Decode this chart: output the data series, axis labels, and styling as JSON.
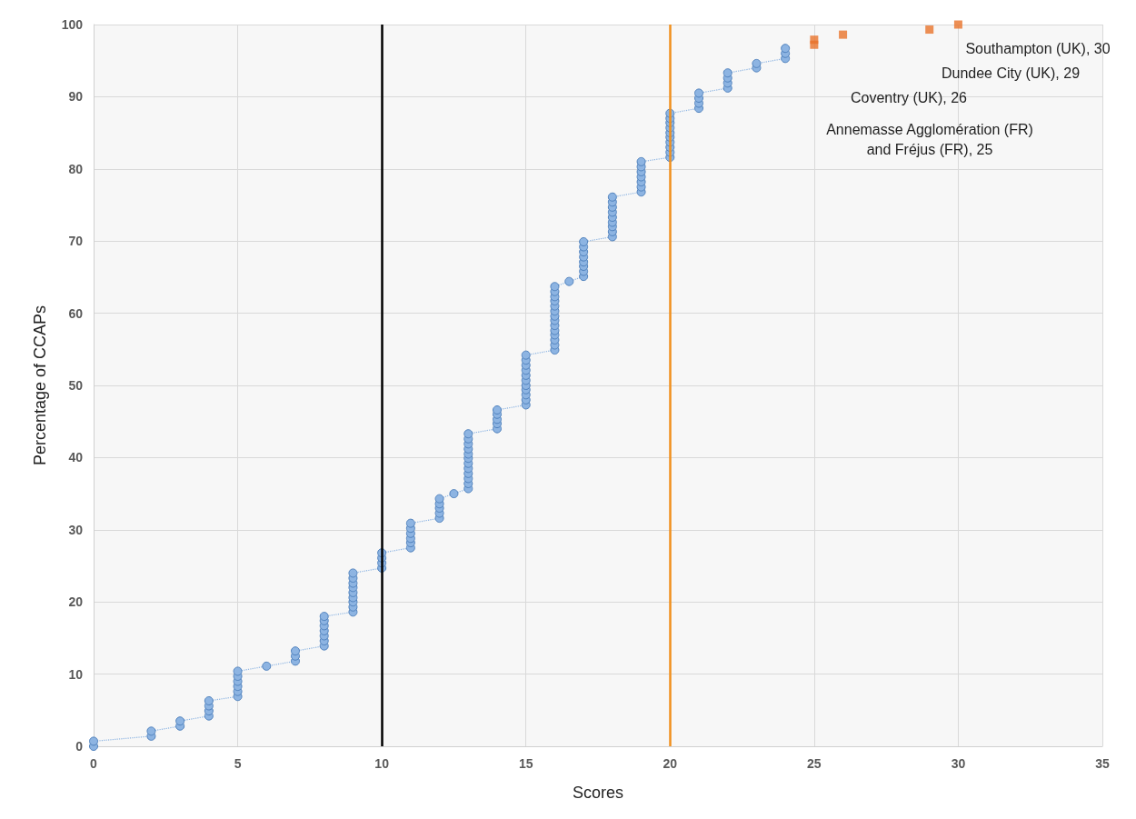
{
  "chart_data": {
    "type": "scatter",
    "xlabel": "Scores",
    "ylabel": "Percentage of CCAPs",
    "xlim": [
      0,
      35
    ],
    "xticks": [
      0,
      5,
      10,
      15,
      20,
      25,
      30,
      35
    ],
    "ylim": [
      0,
      100
    ],
    "yticks": [
      0,
      10,
      20,
      30,
      40,
      50,
      60,
      70,
      80,
      90,
      100
    ],
    "grid": true,
    "series": [
      {
        "type": "line",
        "color": "#8db4e2",
        "marker": "circle",
        "line_style": "dotted",
        "x": [
          0,
          0,
          2,
          2,
          3,
          3,
          4,
          4,
          4,
          4,
          5,
          5,
          5,
          5,
          5,
          5,
          6,
          7,
          7,
          7,
          8,
          8,
          8,
          8,
          8,
          8,
          8,
          9,
          9,
          9,
          9,
          9,
          9,
          9,
          9,
          9,
          10,
          10,
          10,
          10,
          11,
          11,
          11,
          11,
          11,
          11,
          12,
          12,
          12,
          12,
          12,
          12.5,
          13,
          13,
          13,
          13,
          13,
          13,
          13,
          13,
          13,
          13,
          13,
          13,
          14,
          14,
          14,
          14,
          14,
          15,
          15,
          15,
          15,
          15,
          15,
          15,
          15,
          15,
          15,
          15,
          16,
          16,
          16,
          16,
          16,
          16,
          16,
          16,
          16,
          16,
          16,
          16,
          16,
          16,
          16.5,
          17,
          17,
          17,
          17,
          17,
          17,
          17,
          17,
          18,
          18,
          18,
          18,
          18,
          18,
          18,
          18,
          18,
          19,
          19,
          19,
          19,
          19,
          19,
          19,
          20,
          20,
          20,
          20,
          20,
          20,
          20,
          20,
          20,
          20,
          21,
          21,
          21,
          21,
          22,
          22,
          22,
          22,
          23,
          23,
          24,
          24,
          24
        ],
        "values": [
          0,
          0.7,
          1.4,
          2.1,
          2.8,
          3.5,
          4.2,
          4.9,
          5.6,
          6.3,
          6.9,
          7.6,
          8.3,
          9.0,
          9.7,
          10.4,
          11.1,
          11.8,
          12.5,
          13.2,
          13.9,
          14.6,
          15.3,
          16.0,
          16.7,
          17.4,
          18.0,
          18.6,
          19.3,
          20.0,
          20.6,
          21.3,
          22.0,
          22.6,
          23.3,
          24.0,
          24.7,
          25.4,
          26.1,
          26.8,
          27.5,
          28.2,
          28.8,
          29.5,
          30.2,
          30.9,
          31.6,
          32.3,
          33.0,
          33.6,
          34.3,
          35.0,
          35.7,
          36.4,
          37.1,
          37.8,
          38.5,
          39.2,
          39.9,
          40.5,
          41.2,
          41.9,
          42.6,
          43.3,
          44.0,
          44.7,
          45.3,
          46.0,
          46.6,
          47.3,
          48.0,
          48.7,
          49.4,
          50.0,
          50.7,
          51.4,
          52.1,
          52.8,
          53.5,
          54.2,
          54.9,
          55.6,
          56.3,
          57.0,
          57.6,
          58.3,
          59.0,
          59.6,
          60.3,
          61.0,
          61.7,
          62.3,
          63.0,
          63.7,
          64.4,
          65.1,
          65.8,
          66.5,
          67.1,
          67.8,
          68.5,
          69.2,
          69.9,
          70.6,
          71.3,
          72.0,
          72.6,
          73.3,
          74.0,
          74.7,
          75.4,
          76.1,
          76.8,
          77.5,
          78.2,
          78.9,
          79.6,
          80.3,
          81.0,
          81.6,
          82.3,
          83.0,
          83.7,
          84.4,
          85.0,
          85.7,
          86.4,
          87.0,
          87.7,
          88.4,
          89.1,
          89.8,
          90.5,
          91.2,
          91.9,
          92.6,
          93.3,
          94.0,
          94.6,
          95.3,
          96.0,
          96.7
        ]
      },
      {
        "color": "#e8732a",
        "marker": "square",
        "x": [
          25,
          25,
          26,
          29,
          30
        ],
        "values": [
          97.2,
          97.9,
          98.6,
          99.3,
          100
        ]
      }
    ],
    "ref_lines": [
      {
        "axis": "x",
        "value": 10,
        "color": "#000000"
      },
      {
        "axis": "x",
        "value": 20,
        "color": "#f0901e"
      }
    ],
    "annotations": [
      "Southampton (UK), 30",
      "Dundee City (UK), 29",
      "Coventry (UK), 26",
      "Annemasse Agglomération (FR)\nand Fréjus (FR), 25"
    ]
  }
}
